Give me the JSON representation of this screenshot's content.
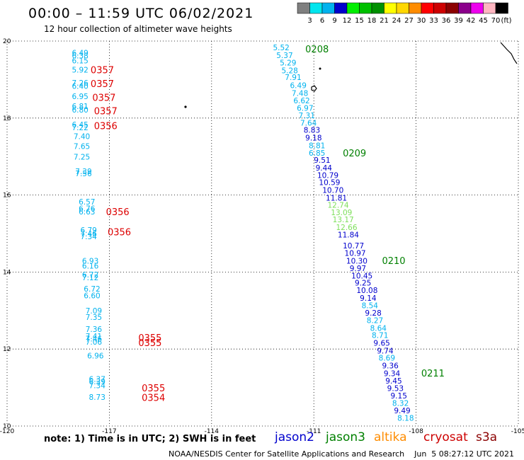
{
  "header": {
    "title": "00:00 – 11:59 UTC 06/02/2021",
    "subtitle": "12 hour collection of altimeter wave heights"
  },
  "legend": {
    "unit": "(ft)",
    "bins": [
      {
        "label": "3",
        "color": "#7f7f7f"
      },
      {
        "label": "6",
        "color": "#00e5ee"
      },
      {
        "label": "9",
        "color": "#00b2ee"
      },
      {
        "label": "12",
        "color": "#0000cd"
      },
      {
        "label": "15",
        "color": "#00ee00"
      },
      {
        "label": "18",
        "color": "#00c000"
      },
      {
        "label": "21",
        "color": "#009000"
      },
      {
        "label": "24",
        "color": "#ffff00"
      },
      {
        "label": "27",
        "color": "#ffd700"
      },
      {
        "label": "30",
        "color": "#ff8c00"
      },
      {
        "label": "33",
        "color": "#ff0000"
      },
      {
        "label": "36",
        "color": "#cd0000"
      },
      {
        "label": "39",
        "color": "#8b0000"
      },
      {
        "label": "42",
        "color": "#8b008b"
      },
      {
        "label": "45",
        "color": "#ee00ee"
      },
      {
        "label": "70",
        "color": "#ffb6c1"
      },
      {
        "label": "",
        "color": "#000000"
      }
    ]
  },
  "footer": {
    "note": "note:  1) Time is in UTC;  2) SWH is in feet",
    "credit": "NOAA/NESDIS Center for Satellite Applications and Research    Jun  5 08:27:12 UTC 2021",
    "missions": [
      {
        "name": "jason2",
        "color": "#0000cd"
      },
      {
        "name": "jason3",
        "color": "#008000"
      },
      {
        "name": "altika",
        "color": "#ff8c00"
      },
      {
        "name": "cryosat",
        "color": "#cd0000"
      },
      {
        "name": "s3a",
        "color": "#8b0000"
      }
    ]
  },
  "colors": {
    "light": "#00b2ee",
    "dark": "#0000cd",
    "green": "#7ddf5a",
    "time_red": "#dd0000",
    "time_green": "#008000"
  },
  "chart_data": {
    "type": "scatter",
    "title": "12 hour collection of altimeter wave heights",
    "xlim": [
      -120,
      -105
    ],
    "ylim": [
      10,
      20
    ],
    "xticks": [
      "-120",
      "-117",
      "-114",
      "-111",
      "-108",
      "-105"
    ],
    "yticks": [
      "10",
      "12",
      "14",
      "16",
      "18",
      "20"
    ],
    "grid": true,
    "track_west": [
      {
        "lon": -118.1,
        "lat": 19.7,
        "swh": "6.49",
        "c": "light"
      },
      {
        "lon": -118.1,
        "lat": 19.62,
        "swh": "6.38",
        "c": "light"
      },
      {
        "lon": -118.1,
        "lat": 19.49,
        "swh": "6.15",
        "c": "light"
      },
      {
        "lon": -118.1,
        "lat": 19.26,
        "swh": "5.92",
        "c": "light"
      },
      {
        "lon": -118.1,
        "lat": 18.92,
        "swh": "7.26",
        "c": "light"
      },
      {
        "lon": -118.1,
        "lat": 18.83,
        "swh": "6.40",
        "c": "light"
      },
      {
        "lon": -118.1,
        "lat": 18.57,
        "swh": "6.95",
        "c": "light"
      },
      {
        "lon": -118.1,
        "lat": 18.31,
        "swh": "6.81",
        "c": "light"
      },
      {
        "lon": -118.1,
        "lat": 18.22,
        "swh": "6.80",
        "c": "light"
      },
      {
        "lon": -118.1,
        "lat": 17.83,
        "swh": "6.45",
        "c": "light"
      },
      {
        "lon": -118.1,
        "lat": 17.76,
        "swh": "7.22",
        "c": "light"
      },
      {
        "lon": -118.05,
        "lat": 17.53,
        "swh": "7.40",
        "c": "light"
      },
      {
        "lon": -118.05,
        "lat": 17.27,
        "swh": "7.65",
        "c": "light"
      },
      {
        "lon": -118.05,
        "lat": 16.99,
        "swh": "7.25",
        "c": "light"
      },
      {
        "lon": -118.0,
        "lat": 16.62,
        "swh": "7.39",
        "c": "light"
      },
      {
        "lon": -118.0,
        "lat": 16.56,
        "swh": "7.56",
        "c": "light"
      },
      {
        "lon": -117.9,
        "lat": 15.83,
        "swh": "6.57",
        "c": "light"
      },
      {
        "lon": -117.9,
        "lat": 15.65,
        "swh": "6.76",
        "c": "light"
      },
      {
        "lon": -117.9,
        "lat": 15.57,
        "swh": "6.63",
        "c": "light"
      },
      {
        "lon": -117.85,
        "lat": 15.09,
        "swh": "6.79",
        "c": "light"
      },
      {
        "lon": -117.85,
        "lat": 15.0,
        "swh": "7.46",
        "c": "light"
      },
      {
        "lon": -117.85,
        "lat": 14.93,
        "swh": "7.34",
        "c": "light"
      },
      {
        "lon": -117.8,
        "lat": 14.29,
        "swh": "6.93",
        "c": "light"
      },
      {
        "lon": -117.8,
        "lat": 14.16,
        "swh": "6.16",
        "c": "light"
      },
      {
        "lon": -117.8,
        "lat": 13.93,
        "swh": "6.72",
        "c": "light"
      },
      {
        "lon": -117.8,
        "lat": 13.86,
        "swh": "7.12",
        "c": "light"
      },
      {
        "lon": -117.75,
        "lat": 13.57,
        "swh": "6.72",
        "c": "light"
      },
      {
        "lon": -117.75,
        "lat": 13.39,
        "swh": "6.60",
        "c": "light"
      },
      {
        "lon": -117.7,
        "lat": 13.0,
        "swh": "7.09",
        "c": "light"
      },
      {
        "lon": -117.7,
        "lat": 12.83,
        "swh": "7.35",
        "c": "light"
      },
      {
        "lon": -117.7,
        "lat": 12.52,
        "swh": "7.36",
        "c": "light"
      },
      {
        "lon": -117.7,
        "lat": 12.33,
        "swh": "7.41",
        "c": "light"
      },
      {
        "lon": -117.7,
        "lat": 12.27,
        "swh": "7.46",
        "c": "light"
      },
      {
        "lon": -117.7,
        "lat": 12.19,
        "swh": "7.06",
        "c": "light"
      },
      {
        "lon": -117.65,
        "lat": 11.83,
        "swh": "6.96",
        "c": "light"
      },
      {
        "lon": -117.6,
        "lat": 11.22,
        "swh": "6.37",
        "c": "light"
      },
      {
        "lon": -117.6,
        "lat": 11.16,
        "swh": "6.39",
        "c": "light"
      },
      {
        "lon": -117.6,
        "lat": 11.06,
        "swh": "7.34",
        "c": "light"
      },
      {
        "lon": -117.6,
        "lat": 10.75,
        "swh": "8.73",
        "c": "light"
      }
    ],
    "track_east": [
      {
        "lon": -112.2,
        "lat": 19.83,
        "swh": "5.52",
        "c": "light"
      },
      {
        "lon": -112.1,
        "lat": 19.63,
        "swh": "5.37",
        "c": "light"
      },
      {
        "lon": -112.0,
        "lat": 19.44,
        "swh": "5.29",
        "c": "light"
      },
      {
        "lon": -111.95,
        "lat": 19.24,
        "swh": "5.28",
        "c": "light"
      },
      {
        "lon": -111.85,
        "lat": 19.06,
        "swh": "7.91",
        "c": "light"
      },
      {
        "lon": -111.7,
        "lat": 18.85,
        "swh": "6.49",
        "c": "light"
      },
      {
        "lon": -111.65,
        "lat": 18.65,
        "swh": "7.48",
        "c": "light"
      },
      {
        "lon": -111.6,
        "lat": 18.46,
        "swh": "6.62",
        "c": "light"
      },
      {
        "lon": -111.5,
        "lat": 18.26,
        "swh": "6.97",
        "c": "light"
      },
      {
        "lon": -111.45,
        "lat": 18.07,
        "swh": "7.31",
        "c": "light"
      },
      {
        "lon": -111.4,
        "lat": 17.88,
        "swh": "7.64",
        "c": "light"
      },
      {
        "lon": -111.3,
        "lat": 17.69,
        "swh": "8.83",
        "c": "dark"
      },
      {
        "lon": -111.25,
        "lat": 17.49,
        "swh": "9.18",
        "c": "dark"
      },
      {
        "lon": -111.15,
        "lat": 17.29,
        "swh": "8.81",
        "c": "light"
      },
      {
        "lon": -111.15,
        "lat": 17.1,
        "swh": "6.85",
        "c": "light"
      },
      {
        "lon": -111.0,
        "lat": 16.91,
        "swh": "9.51",
        "c": "dark"
      },
      {
        "lon": -110.95,
        "lat": 16.71,
        "swh": "9.44",
        "c": "dark"
      },
      {
        "lon": -110.9,
        "lat": 16.52,
        "swh": "10.79",
        "c": "dark"
      },
      {
        "lon": -110.85,
        "lat": 16.33,
        "swh": "10.59",
        "c": "dark"
      },
      {
        "lon": -110.75,
        "lat": 16.13,
        "swh": "10.70",
        "c": "dark"
      },
      {
        "lon": -110.65,
        "lat": 15.93,
        "swh": "11.81",
        "c": "dark"
      },
      {
        "lon": -110.6,
        "lat": 15.74,
        "swh": "12.74",
        "c": "green"
      },
      {
        "lon": -110.5,
        "lat": 15.55,
        "swh": "13.09",
        "c": "green"
      },
      {
        "lon": -110.45,
        "lat": 15.37,
        "swh": "13.17",
        "c": "green"
      },
      {
        "lon": -110.35,
        "lat": 15.17,
        "swh": "12.66",
        "c": "green"
      },
      {
        "lon": -110.3,
        "lat": 14.97,
        "swh": "11.84",
        "c": "dark"
      },
      {
        "lon": -110.15,
        "lat": 14.69,
        "swh": "10.77",
        "c": "dark"
      },
      {
        "lon": -110.1,
        "lat": 14.49,
        "swh": "10.97",
        "c": "dark"
      },
      {
        "lon": -110.05,
        "lat": 14.29,
        "swh": "10.30",
        "c": "dark"
      },
      {
        "lon": -109.95,
        "lat": 14.1,
        "swh": "9.97",
        "c": "dark"
      },
      {
        "lon": -109.9,
        "lat": 13.91,
        "swh": "10.45",
        "c": "dark"
      },
      {
        "lon": -109.8,
        "lat": 13.72,
        "swh": "9.25",
        "c": "dark"
      },
      {
        "lon": -109.75,
        "lat": 13.53,
        "swh": "10.08",
        "c": "dark"
      },
      {
        "lon": -109.65,
        "lat": 13.33,
        "swh": "9.14",
        "c": "dark"
      },
      {
        "lon": -109.6,
        "lat": 13.13,
        "swh": "8.54",
        "c": "light"
      },
      {
        "lon": -109.5,
        "lat": 12.94,
        "swh": "9.28",
        "c": "dark"
      },
      {
        "lon": -109.45,
        "lat": 12.75,
        "swh": "8.27",
        "c": "light"
      },
      {
        "lon": -109.35,
        "lat": 12.55,
        "swh": "8.64",
        "c": "light"
      },
      {
        "lon": -109.3,
        "lat": 12.36,
        "swh": "8.71",
        "c": "light"
      },
      {
        "lon": -109.25,
        "lat": 12.16,
        "swh": "9.65",
        "c": "dark"
      },
      {
        "lon": -109.15,
        "lat": 11.96,
        "swh": "9.74",
        "c": "dark"
      },
      {
        "lon": -109.1,
        "lat": 11.77,
        "swh": "8.69",
        "c": "light"
      },
      {
        "lon": -109.0,
        "lat": 11.57,
        "swh": "9.36",
        "c": "dark"
      },
      {
        "lon": -108.95,
        "lat": 11.37,
        "swh": "9.34",
        "c": "dark"
      },
      {
        "lon": -108.9,
        "lat": 11.18,
        "swh": "9.45",
        "c": "dark"
      },
      {
        "lon": -108.85,
        "lat": 10.98,
        "swh": "9.53",
        "c": "dark"
      },
      {
        "lon": -108.75,
        "lat": 10.79,
        "swh": "9.15",
        "c": "dark"
      },
      {
        "lon": -108.7,
        "lat": 10.6,
        "swh": "8.32",
        "c": "light"
      },
      {
        "lon": -108.65,
        "lat": 10.4,
        "swh": "9.49",
        "c": "dark"
      },
      {
        "lon": -108.55,
        "lat": 10.21,
        "swh": "8.18",
        "c": "light"
      }
    ],
    "time_labels": [
      {
        "lon": -117.55,
        "lat": 19.26,
        "text": "0357",
        "c": "time_red"
      },
      {
        "lon": -117.55,
        "lat": 18.9,
        "text": "0357",
        "c": "time_red"
      },
      {
        "lon": -117.5,
        "lat": 18.54,
        "text": "0357",
        "c": "time_red"
      },
      {
        "lon": -117.45,
        "lat": 18.19,
        "text": "0357",
        "c": "time_red"
      },
      {
        "lon": -117.45,
        "lat": 17.8,
        "text": "0356",
        "c": "time_red"
      },
      {
        "lon": -117.1,
        "lat": 15.57,
        "text": "0356",
        "c": "time_red"
      },
      {
        "lon": -117.05,
        "lat": 15.05,
        "text": "0356",
        "c": "time_red"
      },
      {
        "lon": -116.15,
        "lat": 12.3,
        "text": "0355",
        "c": "time_red"
      },
      {
        "lon": -116.15,
        "lat": 12.17,
        "text": "0355",
        "c": "time_red"
      },
      {
        "lon": -116.05,
        "lat": 10.99,
        "text": "0355",
        "c": "time_red"
      },
      {
        "lon": -116.05,
        "lat": 10.74,
        "text": "0354",
        "c": "time_red"
      },
      {
        "lon": -111.25,
        "lat": 19.8,
        "text": "0208",
        "c": "time_green"
      },
      {
        "lon": -110.15,
        "lat": 17.1,
        "text": "0209",
        "c": "time_green"
      },
      {
        "lon": -109.0,
        "lat": 14.3,
        "text": "0210",
        "c": "time_green"
      },
      {
        "lon": -107.85,
        "lat": 11.38,
        "text": "0211",
        "c": "time_green"
      }
    ]
  }
}
